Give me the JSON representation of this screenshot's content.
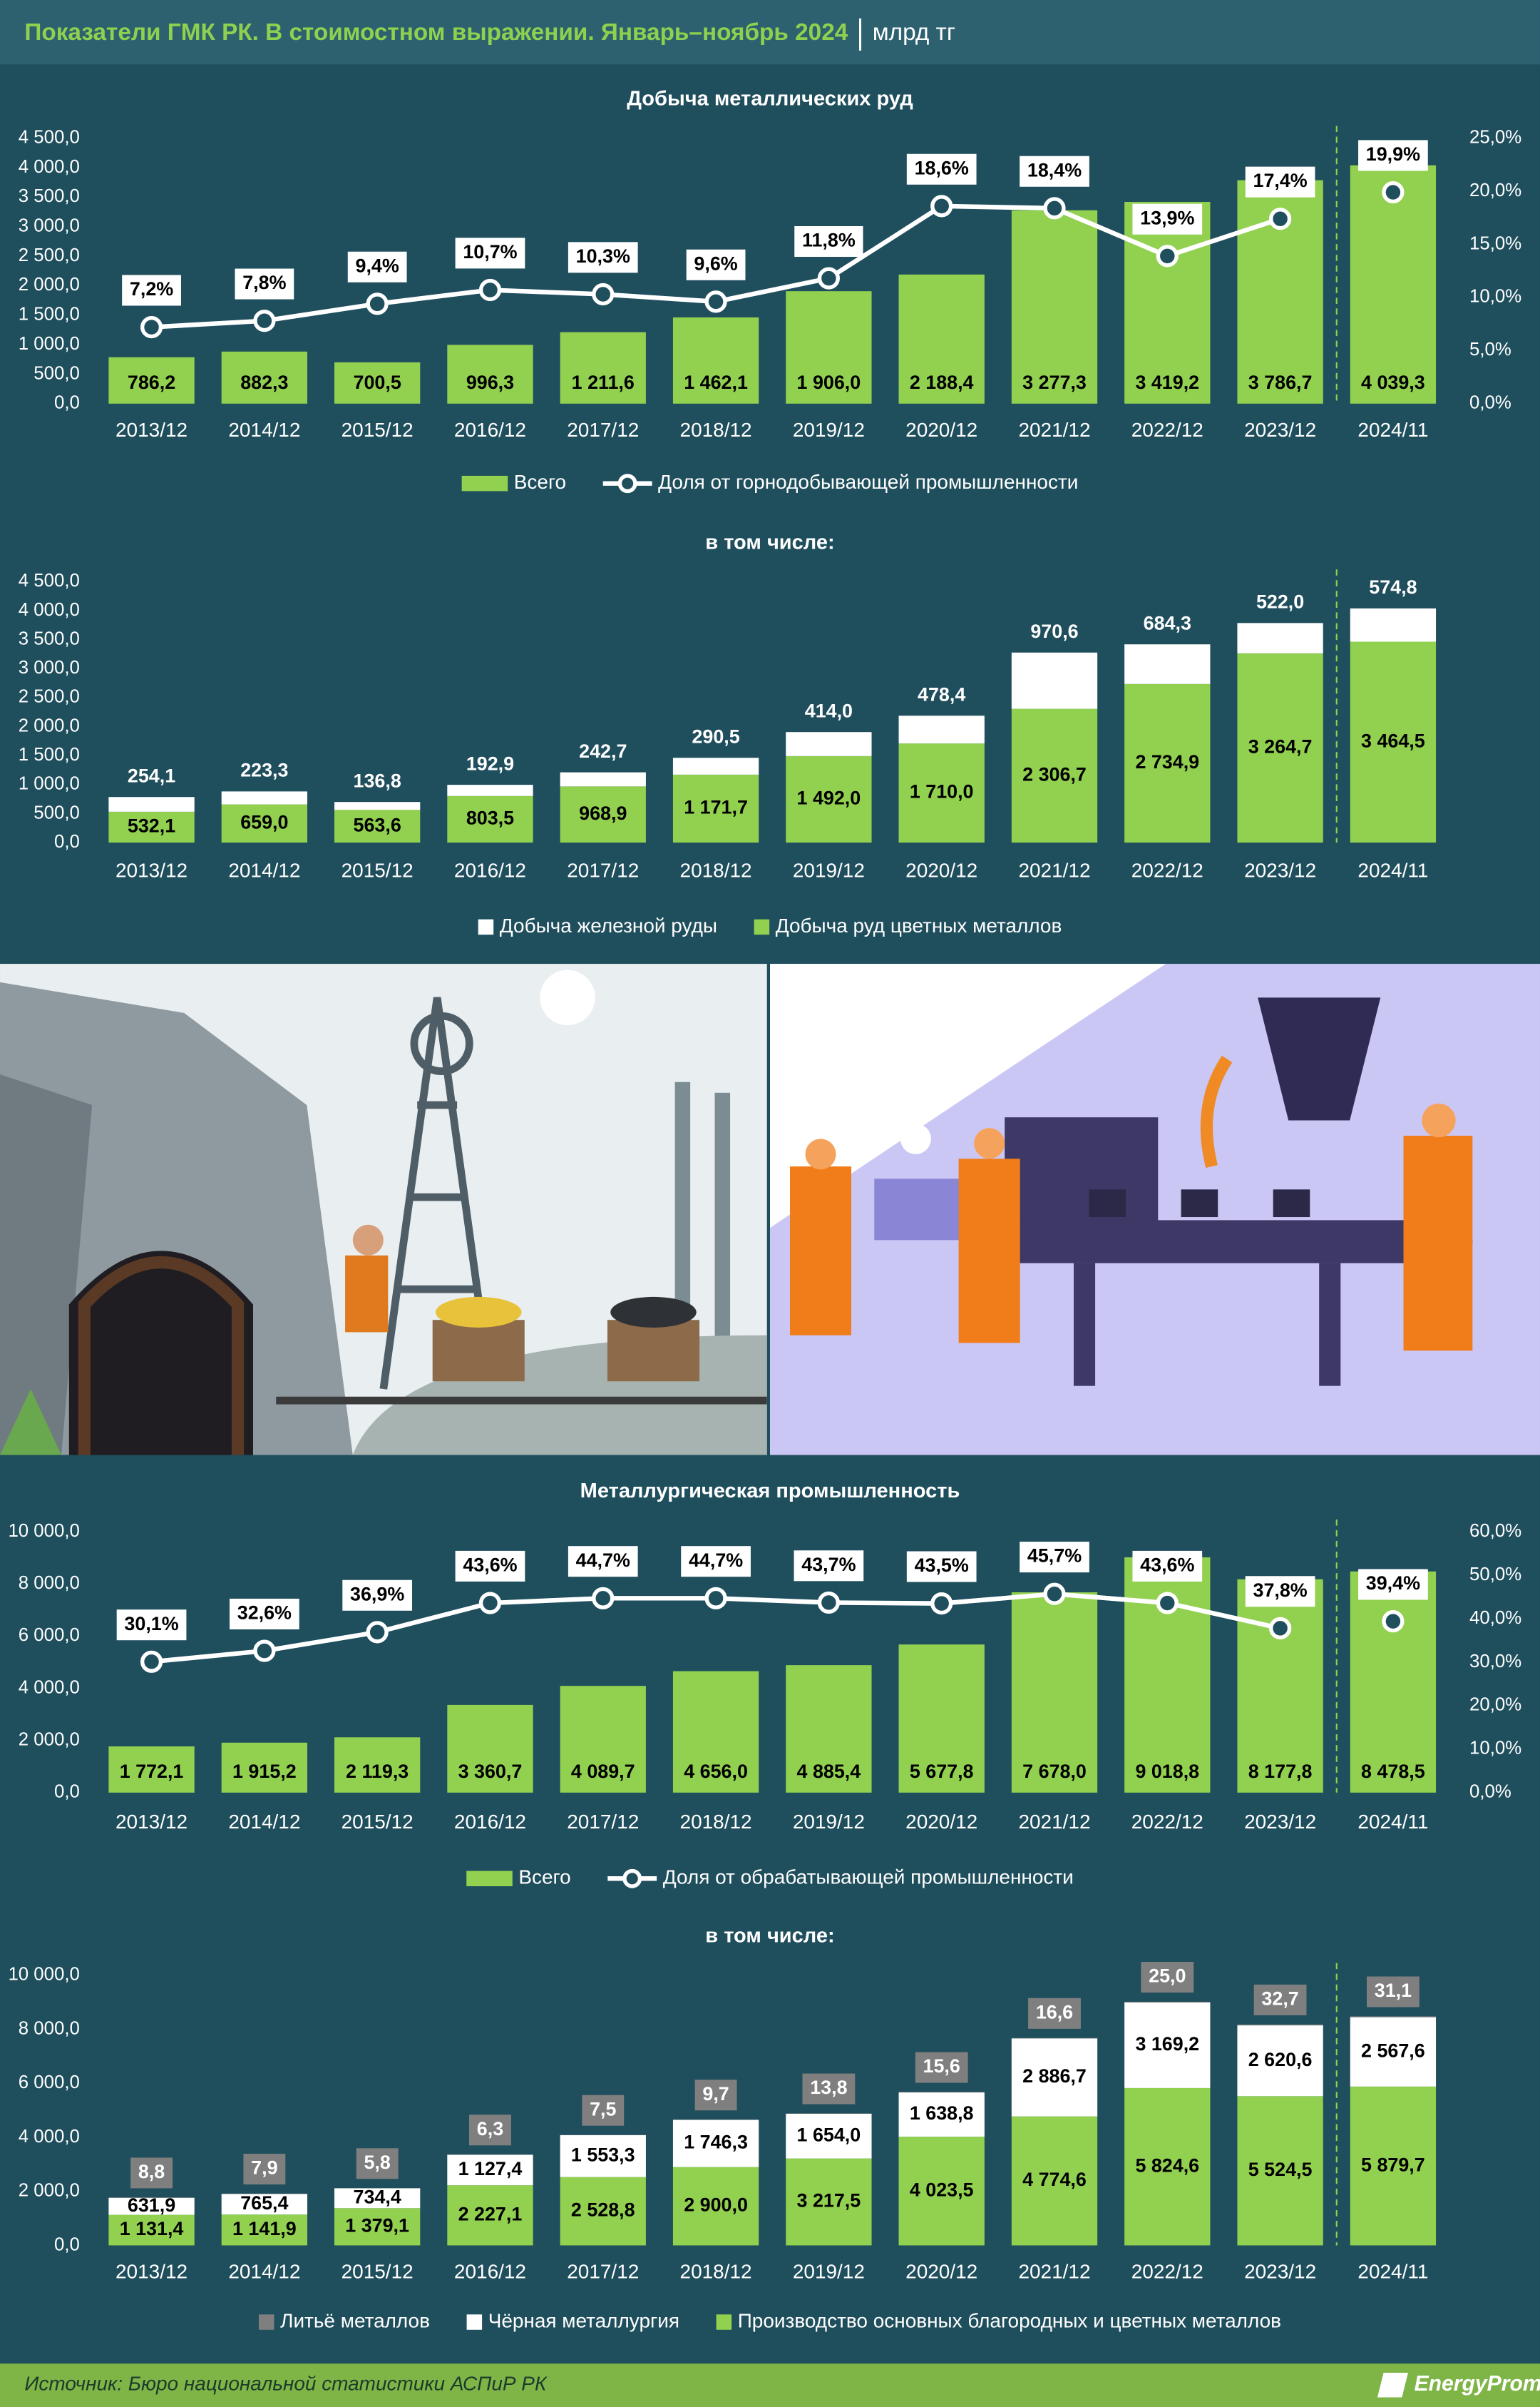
{
  "title": "Показатели ГМК РК. В стоимостном выражении. Январь–ноябрь 2024",
  "unit": "млрд тг",
  "source": "Источник: Бюро национальной статистики АСПиР РК",
  "brand": "EnergyProm",
  "chart_data": [
    {
      "type": "bar_line",
      "title": "Добыча металлических руд",
      "legend": "bottom",
      "grid": false,
      "categories": [
        "2013/12",
        "2014/12",
        "2015/12",
        "2016/12",
        "2017/12",
        "2018/12",
        "2019/12",
        "2020/12",
        "2021/12",
        "2022/12",
        "2023/12",
        "2024/11"
      ],
      "series": [
        {
          "name": "Всего",
          "color": "#92d050",
          "values": [
            786.2,
            882.3,
            700.5,
            996.3,
            1211.6,
            1462.1,
            1906.0,
            2188.4,
            3277.3,
            3419.2,
            3786.7,
            4039.3
          ],
          "value_labels": [
            "786,2",
            "882,3",
            "700,5",
            "996,3",
            "1 211,6",
            "1 462,1",
            "1 906,0",
            "2 188,4",
            "3 277,3",
            "3 419,2",
            "3 786,7",
            "4 039,3"
          ]
        },
        {
          "name": "Доля от горнодобывающей промышленности",
          "color": "#ffffff",
          "axis": "y2",
          "values": [
            7.2,
            7.8,
            9.4,
            10.7,
            10.3,
            9.6,
            11.8,
            18.6,
            18.4,
            13.9,
            17.4,
            19.9
          ],
          "value_labels": [
            "7,2%",
            "7,8%",
            "9,4%",
            "10,7%",
            "10,3%",
            "9,6%",
            "11,8%",
            "18,6%",
            "18,4%",
            "13,9%",
            "17,4%",
            "19,9%"
          ]
        }
      ],
      "ylim": [
        0,
        4500
      ],
      "yticks": [
        {
          "value": 0,
          "label": "0,0"
        },
        {
          "value": 500,
          "label": "500,0"
        },
        {
          "value": 1000,
          "label": "1 000,0"
        },
        {
          "value": 1500,
          "label": "1 500,0"
        },
        {
          "value": 2000,
          "label": "2 000,0"
        },
        {
          "value": 2500,
          "label": "2 500,0"
        },
        {
          "value": 3000,
          "label": "3 000,0"
        },
        {
          "value": 3500,
          "label": "3 500,0"
        },
        {
          "value": 4000,
          "label": "4 000,0"
        },
        {
          "value": 4500,
          "label": "4 500,0"
        }
      ],
      "y2lim": [
        0,
        25
      ],
      "y2ticks": [
        {
          "value": 0,
          "label": "0,0%"
        },
        {
          "value": 5,
          "label": "5,0%"
        },
        {
          "value": 10,
          "label": "10,0%"
        },
        {
          "value": 15,
          "label": "15,0%"
        },
        {
          "value": 20,
          "label": "20,0%"
        },
        {
          "value": 25,
          "label": "25,0%"
        }
      ]
    },
    {
      "type": "stacked_bar",
      "title": "в том числе:",
      "legend": "bottom",
      "grid": false,
      "categories": [
        "2013/12",
        "2014/12",
        "2015/12",
        "2016/12",
        "2017/12",
        "2018/12",
        "2019/12",
        "2020/12",
        "2021/12",
        "2022/12",
        "2023/12",
        "2024/11"
      ],
      "series": [
        {
          "name": "Добыча руд цветных металлов",
          "color": "#92d050",
          "values": [
            532.1,
            659.0,
            563.6,
            803.5,
            968.9,
            1171.7,
            1492.0,
            1710.0,
            2306.7,
            2734.9,
            3264.7,
            3464.5
          ],
          "value_labels": [
            "532,1",
            "659,0",
            "563,6",
            "803,5",
            "968,9",
            "1 171,7",
            "1 492,0",
            "1 710,0",
            "2 306,7",
            "2 734,9",
            "3 264,7",
            "3 464,5"
          ]
        },
        {
          "name": "Добыча железной руды",
          "color": "#ffffff",
          "values": [
            254.1,
            223.3,
            136.8,
            192.9,
            242.7,
            290.5,
            414.0,
            478.4,
            970.6,
            684.3,
            522.0,
            574.8
          ],
          "value_labels": [
            "254,1",
            "223,3",
            "136,8",
            "192,9",
            "242,7",
            "290,5",
            "414,0",
            "478,4",
            "970,6",
            "684,3",
            "522,0",
            "574,8"
          ]
        }
      ],
      "ylim": [
        0,
        4500
      ],
      "yticks": [
        {
          "value": 0,
          "label": "0,0"
        },
        {
          "value": 500,
          "label": "500,0"
        },
        {
          "value": 1000,
          "label": "1 000,0"
        },
        {
          "value": 1500,
          "label": "1 500,0"
        },
        {
          "value": 2000,
          "label": "2 000,0"
        },
        {
          "value": 2500,
          "label": "2 500,0"
        },
        {
          "value": 3000,
          "label": "3 000,0"
        },
        {
          "value": 3500,
          "label": "3 500,0"
        },
        {
          "value": 4000,
          "label": "4 000,0"
        },
        {
          "value": 4500,
          "label": "4 500,0"
        }
      ]
    },
    {
      "type": "bar_line",
      "title": "Металлургическая промышленность",
      "legend": "bottom",
      "grid": false,
      "categories": [
        "2013/12",
        "2014/12",
        "2015/12",
        "2016/12",
        "2017/12",
        "2018/12",
        "2019/12",
        "2020/12",
        "2021/12",
        "2022/12",
        "2023/12",
        "2024/11"
      ],
      "series": [
        {
          "name": "Всего",
          "color": "#92d050",
          "values": [
            1772.1,
            1915.2,
            2119.3,
            3360.7,
            4089.7,
            4656.0,
            4885.4,
            5677.8,
            7678.0,
            9018.8,
            8177.8,
            8478.5
          ],
          "value_labels": [
            "1 772,1",
            "1 915,2",
            "2 119,3",
            "3 360,7",
            "4 089,7",
            "4 656,0",
            "4 885,4",
            "5 677,8",
            "7 678,0",
            "9 018,8",
            "8 177,8",
            "8 478,5"
          ]
        },
        {
          "name": "Доля от обрабатывающей промышленности",
          "color": "#ffffff",
          "axis": "y2",
          "values": [
            30.1,
            32.6,
            36.9,
            43.6,
            44.7,
            44.7,
            43.7,
            43.5,
            45.7,
            43.6,
            37.8,
            39.4
          ],
          "value_labels": [
            "30,1%",
            "32,6%",
            "36,9%",
            "43,6%",
            "44,7%",
            "44,7%",
            "43,7%",
            "43,5%",
            "45,7%",
            "43,6%",
            "37,8%",
            "39,4%"
          ]
        }
      ],
      "ylim": [
        0,
        10000
      ],
      "yticks": [
        {
          "value": 0,
          "label": "0,0"
        },
        {
          "value": 2000,
          "label": "2 000,0"
        },
        {
          "value": 4000,
          "label": "4 000,0"
        },
        {
          "value": 6000,
          "label": "6 000,0"
        },
        {
          "value": 8000,
          "label": "8 000,0"
        },
        {
          "value": 10000,
          "label": "10 000,0"
        }
      ],
      "y2lim": [
        0,
        60
      ],
      "y2ticks": [
        {
          "value": 0,
          "label": "0,0%"
        },
        {
          "value": 10,
          "label": "10,0%"
        },
        {
          "value": 20,
          "label": "20,0%"
        },
        {
          "value": 30,
          "label": "30,0%"
        },
        {
          "value": 40,
          "label": "40,0%"
        },
        {
          "value": 50,
          "label": "50,0%"
        },
        {
          "value": 60,
          "label": "60,0%"
        }
      ]
    },
    {
      "type": "stacked_bar",
      "title": "в том числе:",
      "legend": "bottom",
      "grid": false,
      "categories": [
        "2013/12",
        "2014/12",
        "2015/12",
        "2016/12",
        "2017/12",
        "2018/12",
        "2019/12",
        "2020/12",
        "2021/12",
        "2022/12",
        "2023/12",
        "2024/11"
      ],
      "series": [
        {
          "name": "Производство основных благородных и цветных металлов",
          "color": "#92d050",
          "values": [
            1131.4,
            1141.9,
            1379.1,
            2227.1,
            2528.8,
            2900.0,
            3217.5,
            4023.5,
            4774.6,
            5824.6,
            5524.5,
            5879.7
          ],
          "value_labels": [
            "1 131,4",
            "1 141,9",
            "1 379,1",
            "2 227,1",
            "2 528,8",
            "2 900,0",
            "3 217,5",
            "4 023,5",
            "4 774,6",
            "5 824,6",
            "5 524,5",
            "5 879,7"
          ]
        },
        {
          "name": "Чёрная металлургия",
          "color": "#ffffff",
          "values": [
            631.9,
            765.4,
            734.4,
            1127.4,
            1553.3,
            1746.3,
            1654.0,
            1638.8,
            2886.7,
            3169.2,
            2620.6,
            2567.6
          ],
          "value_labels": [
            "631,9",
            "765,4",
            "734,4",
            "1 127,4",
            "1 553,3",
            "1 746,3",
            "1 654,0",
            "1 638,8",
            "2 886,7",
            "3 169,2",
            "2 620,6",
            "2 567,6"
          ]
        },
        {
          "name": "Литьё металлов",
          "color": "#7f7f7f",
          "values": [
            8.8,
            7.9,
            5.8,
            6.3,
            7.5,
            9.7,
            13.8,
            15.6,
            16.6,
            25.0,
            32.7,
            31.1
          ],
          "value_labels": [
            "8,8",
            "7,9",
            "5,8",
            "6,3",
            "7,5",
            "9,7",
            "13,8",
            "15,6",
            "16,6",
            "25,0",
            "32,7",
            "31,1"
          ]
        }
      ],
      "ylim": [
        0,
        10000
      ],
      "yticks": [
        {
          "value": 0,
          "label": "0,0"
        },
        {
          "value": 2000,
          "label": "2 000,0"
        },
        {
          "value": 4000,
          "label": "4 000,0"
        },
        {
          "value": 6000,
          "label": "6 000,0"
        },
        {
          "value": 8000,
          "label": "8 000,0"
        },
        {
          "value": 10000,
          "label": "10 000,0"
        }
      ]
    }
  ]
}
